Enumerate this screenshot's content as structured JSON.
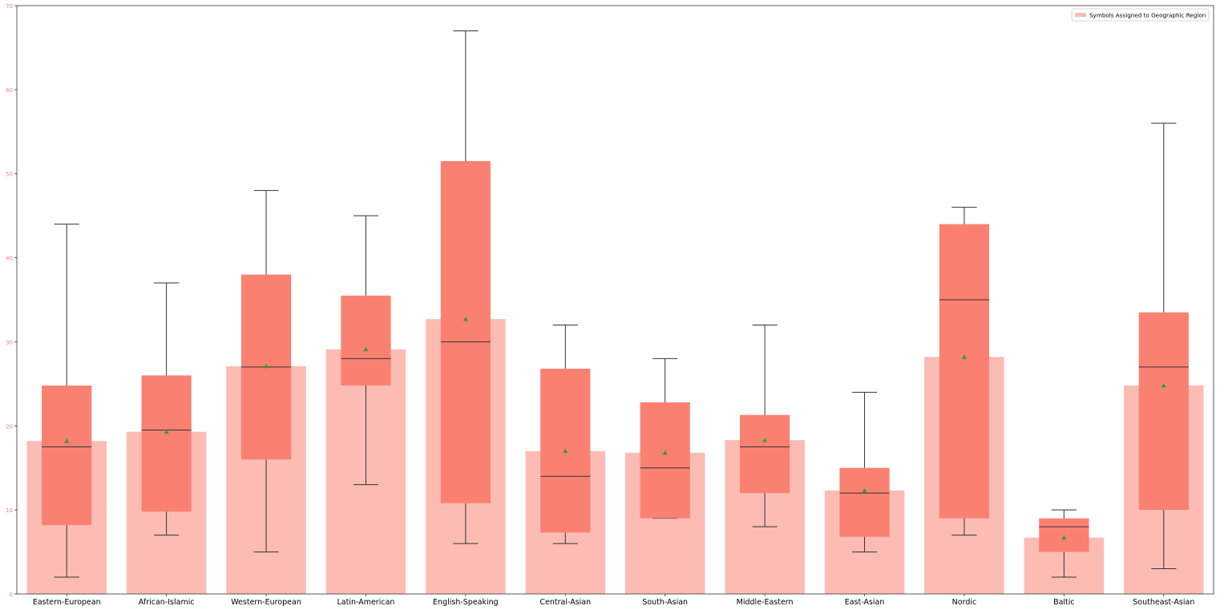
{
  "chart_data": {
    "type": "bar",
    "subtype": "bar with overlaid box plots",
    "categories": [
      "Eastern-European",
      "African-Islamic",
      "Western-European",
      "Latin-American",
      "English-Speaking",
      "Central-Asian",
      "South-Asian",
      "Middle-Eastern",
      "East-Asian",
      "Nordic",
      "Baltic",
      "Southeast-Asian"
    ],
    "series": [
      {
        "name": "Symbols Assigned to Geographic Region",
        "kind": "bar",
        "values": [
          18.2,
          19.3,
          27.1,
          29.1,
          32.7,
          17.0,
          16.8,
          18.3,
          12.3,
          28.2,
          6.7,
          24.8
        ]
      }
    ],
    "boxplots": [
      {
        "category": "Eastern-European",
        "whisker_low": 2,
        "q1": 8.2,
        "median": 17.5,
        "q3": 24.8,
        "whisker_high": 44,
        "mean": 18.2
      },
      {
        "category": "African-Islamic",
        "whisker_low": 7,
        "q1": 9.8,
        "median": 19.5,
        "q3": 26,
        "whisker_high": 37,
        "mean": 19.3
      },
      {
        "category": "Western-European",
        "whisker_low": 5,
        "q1": 16,
        "median": 27,
        "q3": 38,
        "whisker_high": 48,
        "mean": 27.1
      },
      {
        "category": "Latin-American",
        "whisker_low": 13,
        "q1": 24.8,
        "median": 28,
        "q3": 35.5,
        "whisker_high": 45,
        "mean": 29.1
      },
      {
        "category": "English-Speaking",
        "whisker_low": 6,
        "q1": 10.8,
        "median": 30,
        "q3": 51.5,
        "whisker_high": 67,
        "mean": 32.7
      },
      {
        "category": "Central-Asian",
        "whisker_low": 6,
        "q1": 7.3,
        "median": 14,
        "q3": 26.8,
        "whisker_high": 32,
        "mean": 17.0
      },
      {
        "category": "South-Asian",
        "whisker_low": 9,
        "q1": 9,
        "median": 15,
        "q3": 22.8,
        "whisker_high": 28,
        "mean": 16.8
      },
      {
        "category": "Middle-Eastern",
        "whisker_low": 8,
        "q1": 12,
        "median": 17.5,
        "q3": 21.3,
        "whisker_high": 32,
        "mean": 18.3
      },
      {
        "category": "East-Asian",
        "whisker_low": 5,
        "q1": 6.8,
        "median": 12,
        "q3": 15,
        "whisker_high": 24,
        "mean": 12.3
      },
      {
        "category": "Nordic",
        "whisker_low": 7,
        "q1": 9,
        "median": 35,
        "q3": 44,
        "whisker_high": 46,
        "mean": 28.2
      },
      {
        "category": "Baltic",
        "whisker_low": 2,
        "q1": 5,
        "median": 8,
        "q3": 9,
        "whisker_high": 10,
        "mean": 6.7
      },
      {
        "category": "Southeast-Asian",
        "whisker_low": 3,
        "q1": 10,
        "median": 27,
        "q3": 33.5,
        "whisker_high": 56,
        "mean": 24.8
      }
    ],
    "ylim": [
      0,
      70
    ],
    "yticks": [
      0,
      10,
      20,
      30,
      40,
      50,
      60,
      70
    ],
    "title": "",
    "xlabel": "",
    "ylabel": "",
    "grid": false,
    "legend": {
      "placement": "top-right",
      "entries": [
        "Symbols Assigned to Geographic Region"
      ]
    },
    "colors": {
      "bar": "#fcbcb4",
      "box": "#fa8172",
      "median_line": "#333333",
      "whisker": "#333333",
      "mean_marker": "#2ca02c",
      "ytick_label": "#fa8172",
      "axis": "#333333"
    },
    "markers": {
      "mean": "triangle"
    }
  }
}
